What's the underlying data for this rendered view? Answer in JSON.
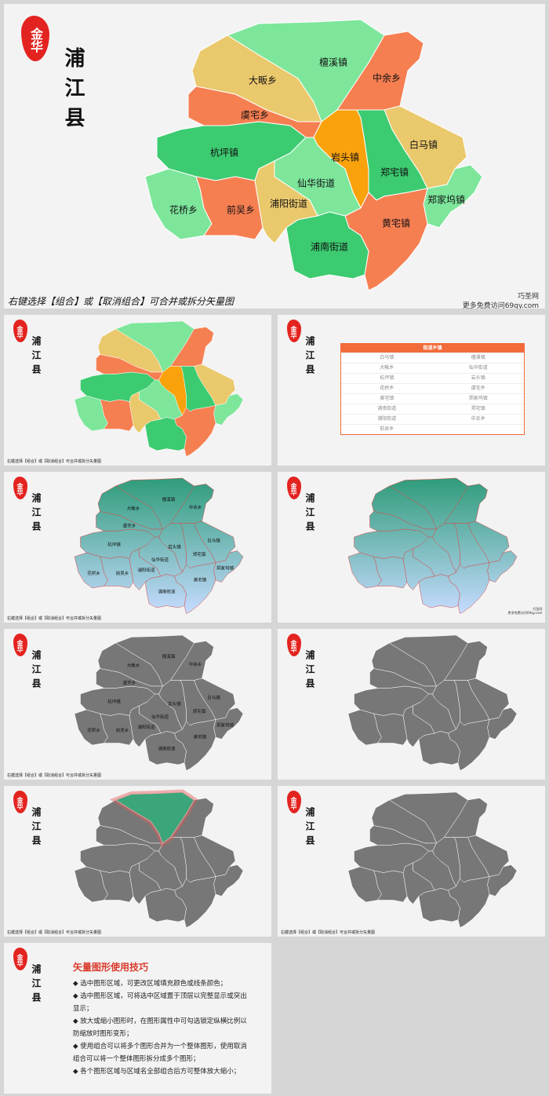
{
  "logo": "金华",
  "title": "浦江县",
  "caption": "右键选择【组合】或【取消组合】可合并或拆分矢量图",
  "watermark": [
    "巧圣网",
    "更多免费访问69qy.com"
  ],
  "regions": [
    {
      "name": "檀溪镇",
      "color": "#7de69b"
    },
    {
      "name": "大畈乡",
      "color": "#eac86c"
    },
    {
      "name": "中余乡",
      "color": "#f67f52"
    },
    {
      "name": "虞宅乡",
      "color": "#f67f52"
    },
    {
      "name": "白马镇",
      "color": "#eac86c"
    },
    {
      "name": "杭坪镇",
      "color": "#3ccb70"
    },
    {
      "name": "岩头镇",
      "color": "#f9a20c"
    },
    {
      "name": "郑宅镇",
      "color": "#3ccb70"
    },
    {
      "name": "仙华街道",
      "color": "#7de69b"
    },
    {
      "name": "郑家坞镇",
      "color": "#7de69b"
    },
    {
      "name": "花桥乡",
      "color": "#7de69b"
    },
    {
      "name": "前吴乡",
      "color": "#f67f52"
    },
    {
      "name": "浦阳街道",
      "color": "#eac86c"
    },
    {
      "name": "黄宅镇",
      "color": "#f67f52"
    },
    {
      "name": "浦南街道",
      "color": "#3ccb70"
    }
  ],
  "table": {
    "header": "街道乡镇",
    "rows": [
      [
        "白马镇",
        "檀溪镇"
      ],
      [
        "大畈乡",
        "仙华街道"
      ],
      [
        "杭坪镇",
        "岩头镇"
      ],
      [
        "花桥乡",
        "虞宅乡"
      ],
      [
        "黄宅镇",
        "郑家坞镇"
      ],
      [
        "浦南街道",
        "郑宅镇"
      ],
      [
        "浦阳街道",
        "中余乡"
      ],
      [
        "前吴乡"
      ]
    ]
  },
  "tips": {
    "title": "矢量图形使用技巧",
    "items": [
      "选中图形区域，可更改区域填充颜色或线条颜色；",
      "选中图形区域，可将选中区域置于顶层以完整显示或突出显示；",
      "放大或缩小图形时，在图形属性中可勾选锁定纵横比例以防缩放时图形变形；",
      "使用组合可以将多个图形合并为一个整体图形，使用取消组合可以将一个整体图形拆分成多个图形；",
      "各个图形区域与区域名全部组合后方可整体放大缩小；"
    ]
  }
}
